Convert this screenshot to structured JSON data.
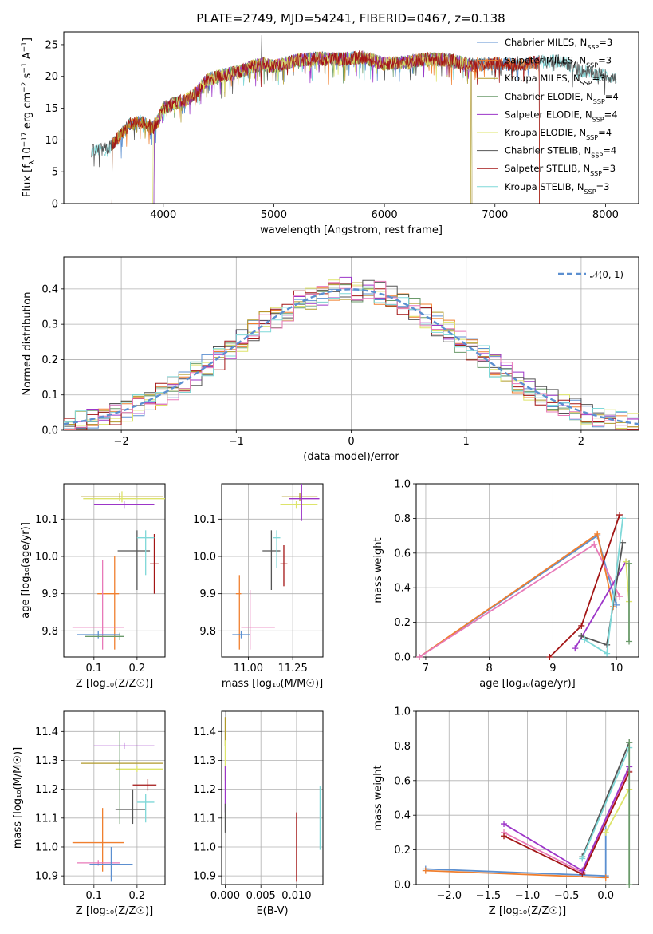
{
  "title": "PLATE=2749, MJD=54241, FIBERID=0467, z=0.138",
  "colors": {
    "chabrier_miles": "#5b8fd0",
    "salpeter_miles": "#f07f2e",
    "kroupa_miles": "#b09a2a",
    "chabrier_elodie": "#6a9a6a",
    "salpeter_elodie": "#9c35c8",
    "kroupa_elodie": "#dde46a",
    "chabrier_stelib": "#555555",
    "salpeter_stelib": "#a31515",
    "kroupa_stelib": "#7fd8d8",
    "pink": "#e879b8",
    "normal": "#5b8fd0"
  },
  "panels": {
    "spectrum": {
      "xlabel": "wavelength [Angstrom, rest frame]",
      "ylabel": "Flux [f_λ10^-17 erg cm^-2 s^-1 A^-1]",
      "xticks": [
        "4000",
        "5000",
        "6000",
        "7000",
        "8000"
      ],
      "yticks": [
        "0",
        "5",
        "10",
        "15",
        "20",
        "25"
      ],
      "legend": [
        "Chabrier MILES, N_SSP=3",
        "Salpeter MILES, N_SSP=3",
        "Kroupa MILES, N_SSP=3",
        "Chabrier ELODIE, N_SSP=4",
        "Salpeter ELODIE, N_SSP=4",
        "Kroupa ELODIE, N_SSP=4",
        "Chabrier STELIB, N_SSP=4",
        "Salpeter STELIB, N_SSP=3",
        "Kroupa STELIB, N_SSP=3"
      ]
    },
    "hist": {
      "xlabel": "(data-model)/error",
      "ylabel": "Normed distribution",
      "xticks": [
        "−2",
        "−1",
        "0",
        "1",
        "2"
      ],
      "yticks": [
        "0.0",
        "0.1",
        "0.2",
        "0.3",
        "0.4"
      ],
      "legend": "𝒩(0, 1)"
    },
    "age_z": {
      "xlabel": "Z [log₁₀(Z/Z☉)]",
      "ylabel": "age  [log₁₀(age/yr)]",
      "xticks": [
        "0.1",
        "0.2"
      ],
      "yticks": [
        "9.8",
        "9.9",
        "10.0",
        "10.1"
      ]
    },
    "age_mass": {
      "xlabel": "mass [log₁₀(M/M☉)]",
      "xticks": [
        "11.00",
        "11.25"
      ],
      "yticks": [
        "9.8",
        "9.9",
        "10.0",
        "10.1"
      ]
    },
    "mw_age": {
      "xlabel": "age  [log₁₀(age/yr)]",
      "ylabel": "mass weight",
      "xticks": [
        "7",
        "8",
        "9",
        "10"
      ],
      "yticks": [
        "0.0",
        "0.2",
        "0.4",
        "0.6",
        "0.8",
        "1.0"
      ]
    },
    "mass_z": {
      "xlabel": "Z [log₁₀(Z/Z☉)]",
      "ylabel": "mass [log₁₀(M/M☉)]",
      "xticks": [
        "0.1",
        "0.2"
      ],
      "yticks": [
        "10.9",
        "11.0",
        "11.1",
        "11.2",
        "11.3",
        "11.4"
      ]
    },
    "mass_ebv": {
      "xlabel": "E(B-V)",
      "xticks": [
        "0.000",
        "0.005",
        "0.010"
      ],
      "yticks": [
        "10.9",
        "11.0",
        "11.1",
        "11.2",
        "11.3",
        "11.4"
      ]
    },
    "mw_z": {
      "xlabel": "Z [log₁₀(Z/Z☉)]",
      "ylabel": "mass weight",
      "xticks": [
        "−2.0",
        "−1.5",
        "−1.0",
        "−0.5",
        "0.0"
      ],
      "yticks": [
        "0.0",
        "0.2",
        "0.4",
        "0.6",
        "0.8",
        "1.0"
      ]
    }
  },
  "chart_data": [
    {
      "type": "line",
      "title": "PLATE=2749, MJD=54241, FIBERID=0467, z=0.138",
      "xlabel": "wavelength [Angstrom, rest frame]",
      "ylabel": "Flux [f_λ10^-17 erg cm^-2 s^-1 A^-1]",
      "xlim": [
        3100,
        8300
      ],
      "ylim": [
        0,
        27
      ],
      "grid": false,
      "legend_position": "top-right",
      "continuum": {
        "x": [
          3350,
          3500,
          3600,
          3700,
          3800,
          3900,
          3950,
          4000,
          4100,
          4200,
          4300,
          4400,
          4500,
          4600,
          4700,
          4800,
          4900,
          5000,
          5200,
          5400,
          5600,
          5800,
          6000,
          6200,
          6400,
          6600,
          6800,
          7000,
          7200,
          7400,
          7600,
          7800,
          8000,
          8100
        ],
        "y": [
          8.2,
          8.6,
          10.5,
          12.5,
          12.8,
          12.0,
          13.0,
          15.0,
          15.8,
          16.2,
          17.5,
          19.5,
          20.0,
          20.4,
          20.8,
          21.5,
          22.0,
          21.5,
          22.5,
          22.8,
          22.7,
          23.0,
          22.0,
          22.2,
          22.8,
          22.5,
          21.8,
          22.0,
          21.8,
          22.3,
          22.4,
          20.8,
          20.2,
          19.5
        ]
      },
      "series": [
        {
          "name": "Chabrier MILES, N_SSP=3",
          "x_start": 3540,
          "x_end": 7400
        },
        {
          "name": "Salpeter MILES, N_SSP=3",
          "x_start": 3540,
          "x_end": 7400
        },
        {
          "name": "Kroupa MILES, N_SSP=3",
          "x_start": 3540,
          "x_end": 6780
        },
        {
          "name": "Chabrier ELODIE, N_SSP=4",
          "x_start": 3920,
          "x_end": 6790
        },
        {
          "name": "Salpeter ELODIE, N_SSP=4",
          "x_start": 3920,
          "x_end": 6790
        },
        {
          "name": "Kroupa ELODIE, N_SSP=4",
          "x_start": 3910,
          "x_end": 6790
        },
        {
          "name": "Chabrier STELIB, N_SSP=4",
          "x_start": 3350,
          "x_end": 8100
        },
        {
          "name": "Salpeter STELIB, N_SSP=3",
          "x_start": 3540,
          "x_end": 7400
        },
        {
          "name": "Kroupa STELIB, N_SSP=3",
          "x_start": 3350,
          "x_end": 8100
        }
      ]
    },
    {
      "type": "bar",
      "xlabel": "(data-model)/error",
      "ylabel": "Normed distribution",
      "xlim": [
        -2.5,
        2.5
      ],
      "ylim": [
        0,
        0.49
      ],
      "grid": true,
      "legend_position": "top-right",
      "bin_width": 0.1,
      "bin_start": -2.5,
      "reference_curve": {
        "name": "𝒩(0, 1)",
        "mean": 0,
        "sigma": 1
      }
    },
    {
      "type": "scatter",
      "xlabel": "Z [log₁₀(Z/Z☉)]",
      "ylabel": "age  [log₁₀(age/yr)]",
      "xlim": [
        0.03,
        0.265
      ],
      "ylim": [
        9.73,
        10.195
      ],
      "grid": true,
      "points": [
        {
          "x": 0.16,
          "xerr": [
            0.09,
            0.1
          ],
          "y": 10.16,
          "yerr": [
            0.01,
            0.01
          ]
        },
        {
          "x": 0.165,
          "xerr": [
            0.09,
            0.1
          ],
          "y": 10.155,
          "yerr": [
            0.01,
            0.02
          ]
        },
        {
          "x": 0.17,
          "xerr": [
            0.07,
            0.07
          ],
          "y": 10.14,
          "yerr": [
            0.01,
            0.01
          ]
        },
        {
          "x": 0.2,
          "xerr": [
            0.045,
            0.03
          ],
          "y": 10.015,
          "yerr": [
            0.105,
            0.055
          ]
        },
        {
          "x": 0.24,
          "xerr": [
            0.01,
            0.01
          ],
          "y": 9.98,
          "yerr": [
            0.08,
            0.08
          ]
        },
        {
          "x": 0.22,
          "xerr": [
            0.02,
            0.02
          ],
          "y": 10.05,
          "yerr": [
            0.1,
            0.02
          ]
        },
        {
          "x": 0.148,
          "xerr": [
            0.04,
            0.01
          ],
          "y": 9.9,
          "yerr": [
            0.15,
            0.1
          ]
        },
        {
          "x": 0.12,
          "xerr": [
            0.07,
            0.05
          ],
          "y": 9.81,
          "yerr": [
            0.06,
            0.18
          ]
        },
        {
          "x": 0.11,
          "xerr": [
            0.05,
            0.05
          ],
          "y": 9.79,
          "yerr": [
            0.01,
            0.01
          ]
        },
        {
          "x": 0.16,
          "xerr": [
            0.08,
            0.01
          ],
          "y": 9.785,
          "yerr": [
            0.01,
            0.01
          ]
        }
      ]
    },
    {
      "type": "scatter",
      "xlabel": "mass [log₁₀(M/M☉)]",
      "xlim": [
        10.85,
        11.42
      ],
      "ylim": [
        9.73,
        10.195
      ],
      "grid": true,
      "points": [
        {
          "x": 11.29,
          "xerr": [
            0.1,
            0.1
          ],
          "y": 10.16,
          "yerr": [
            0.01,
            0.01
          ]
        },
        {
          "x": 11.27,
          "xerr": [
            0.09,
            0.12
          ],
          "y": 10.14,
          "yerr": [
            0.01,
            0.01
          ]
        },
        {
          "x": 11.3,
          "xerr": [
            0.07,
            0.1
          ],
          "y": 10.155,
          "yerr": [
            0.06,
            0.06
          ]
        },
        {
          "x": 11.13,
          "xerr": [
            0.05,
            0.05
          ],
          "y": 10.015,
          "yerr": [
            0.105,
            0.055
          ]
        },
        {
          "x": 11.2,
          "xerr": [
            0.02,
            0.02
          ],
          "y": 9.98,
          "yerr": [
            0.06,
            0.05
          ]
        },
        {
          "x": 11.16,
          "xerr": [
            0.02,
            0.02
          ],
          "y": 10.05,
          "yerr": [
            0.08,
            0.02
          ]
        },
        {
          "x": 10.95,
          "xerr": [
            0.02,
            0.01
          ],
          "y": 9.9,
          "yerr": [
            0.15,
            0.05
          ]
        },
        {
          "x": 11.01,
          "xerr": [
            0.05,
            0.14
          ],
          "y": 9.81,
          "yerr": [
            0.06,
            0.1
          ]
        },
        {
          "x": 10.96,
          "xerr": [
            0.05,
            0.05
          ],
          "y": 9.79,
          "yerr": [
            0.01,
            0.01
          ]
        }
      ]
    },
    {
      "type": "line",
      "xlabel": "age  [log₁₀(age/yr)]",
      "ylabel": "mass weight",
      "xlim": [
        6.85,
        10.35
      ],
      "ylim": [
        0,
        1
      ],
      "grid": true,
      "series": [
        {
          "x": [
            6.9,
            9.7,
            10.0
          ],
          "y": [
            0.0,
            0.7,
            0.3
          ]
        },
        {
          "x": [
            6.9,
            9.7,
            9.95
          ],
          "y": [
            0.0,
            0.71,
            0.29
          ]
        },
        {
          "x": [
            6.9,
            9.65,
            10.05
          ],
          "y": [
            0.0,
            0.65,
            0.35
          ]
        },
        {
          "x": [
            8.95,
            9.45,
            10.05
          ],
          "y": [
            0.0,
            0.18,
            0.82
          ]
        },
        {
          "x": [
            9.35,
            10.15
          ],
          "y": [
            0.05,
            0.55
          ]
        },
        {
          "x": [
            9.45,
            9.85,
            10.1
          ],
          "y": [
            0.12,
            0.07,
            0.66
          ]
        },
        {
          "x": [
            9.5,
            9.85,
            10.1
          ],
          "y": [
            0.1,
            0.02,
            0.8
          ]
        },
        {
          "x": [
            10.15,
            10.2
          ],
          "y": [
            0.55,
            0.32
          ]
        },
        {
          "x": [
            10.2,
            10.2
          ],
          "y": [
            0.09,
            0.54
          ]
        }
      ]
    },
    {
      "type": "scatter",
      "xlabel": "Z [log₁₀(Z/Z☉)]",
      "ylabel": "mass [log₁₀(M/M☉)]",
      "xlim": [
        0.03,
        0.265
      ],
      "ylim": [
        10.87,
        11.47
      ],
      "grid": true,
      "points": [
        {
          "x": 0.16,
          "xerr": [
            0.09,
            0.1
          ],
          "y": 11.29,
          "yerr": [
            0.01,
            0.01
          ]
        },
        {
          "x": 0.2,
          "xerr": [
            0.05,
            0.06
          ],
          "y": 11.27,
          "yerr": [
            0.01,
            0.01
          ]
        },
        {
          "x": 0.17,
          "xerr": [
            0.07,
            0.07
          ],
          "y": 11.35,
          "yerr": [
            0.01,
            0.01
          ]
        },
        {
          "x": 0.19,
          "xerr": [
            0.04,
            0.03
          ],
          "y": 11.13,
          "yerr": [
            0.05,
            0.07
          ]
        },
        {
          "x": 0.225,
          "xerr": [
            0.035,
            0.02
          ],
          "y": 11.215,
          "yerr": [
            0.02,
            0.02
          ]
        },
        {
          "x": 0.22,
          "xerr": [
            0.02,
            0.02
          ],
          "y": 11.155,
          "yerr": [
            0.07,
            0.03
          ]
        },
        {
          "x": 0.12,
          "xerr": [
            0.07,
            0.05
          ],
          "y": 11.015,
          "yerr": [
            0.1,
            0.12
          ]
        },
        {
          "x": 0.11,
          "xerr": [
            0.05,
            0.05
          ],
          "y": 10.945,
          "yerr": [
            0.01,
            0.01
          ]
        },
        {
          "x": 0.14,
          "xerr": [
            0.05,
            0.05
          ],
          "y": 10.94,
          "yerr": [
            0.06,
            0.06
          ]
        },
        {
          "x": 0.16,
          "xerr": [
            0.001,
            0.001
          ],
          "y": 11.3,
          "yerr": [
            0.22,
            0.1
          ]
        }
      ]
    },
    {
      "type": "scatter",
      "xlabel": "E(B-V)",
      "xlim": [
        -0.0005,
        0.0137
      ],
      "ylim": [
        10.87,
        11.47
      ],
      "grid": true,
      "points": [
        {
          "x": 0.0,
          "xerr": [
            0,
            0
          ],
          "y": 11.4,
          "yerr": [
            0.05,
            0.05
          ]
        },
        {
          "x": 0.0,
          "xerr": [
            0,
            0
          ],
          "y": 11.3,
          "yerr": [
            0.07,
            0.07
          ]
        },
        {
          "x": 0.0,
          "xerr": [
            0,
            0
          ],
          "y": 11.2,
          "yerr": [
            0.08,
            0.08
          ]
        },
        {
          "x": 0.0,
          "xerr": [
            0,
            0
          ],
          "y": 11.1,
          "yerr": [
            0.05,
            0.05
          ]
        },
        {
          "x": 0.01,
          "xerr": [
            0,
            0
          ],
          "y": 11.0,
          "yerr": [
            0.12,
            0.12
          ]
        },
        {
          "x": 0.0133,
          "xerr": [
            0,
            0
          ],
          "y": 11.1,
          "yerr": [
            0.11,
            0.11
          ]
        }
      ]
    },
    {
      "type": "line",
      "xlabel": "Z [log₁₀(Z/Z☉)]",
      "ylabel": "mass weight",
      "xlim": [
        -2.42,
        0.42
      ],
      "ylim": [
        0,
        1
      ],
      "grid": true,
      "series": [
        {
          "x": [
            -2.3,
            0.0,
            0.0
          ],
          "y": [
            0.09,
            0.05,
            0.32
          ]
        },
        {
          "x": [
            -2.3,
            0.0
          ],
          "y": [
            0.08,
            0.04
          ]
        },
        {
          "x": [
            -1.3,
            -0.3,
            0.3
          ],
          "y": [
            0.3,
            0.07,
            0.66
          ]
        },
        {
          "x": [
            -1.3,
            -0.3,
            0.3
          ],
          "y": [
            0.28,
            0.06,
            0.65
          ]
        },
        {
          "x": [
            -1.3,
            -0.3,
            0.3
          ],
          "y": [
            0.35,
            0.08,
            0.68
          ]
        },
        {
          "x": [
            -0.3,
            0.3
          ],
          "y": [
            0.16,
            0.82
          ]
        },
        {
          "x": [
            -0.3,
            0.3
          ],
          "y": [
            0.15,
            0.79
          ]
        },
        {
          "x": [
            0.0,
            0.3
          ],
          "y": [
            0.3,
            0.55
          ]
        },
        {
          "x": [
            0.3,
            0.3
          ],
          "y": [
            0.0,
            0.82
          ]
        }
      ]
    }
  ]
}
